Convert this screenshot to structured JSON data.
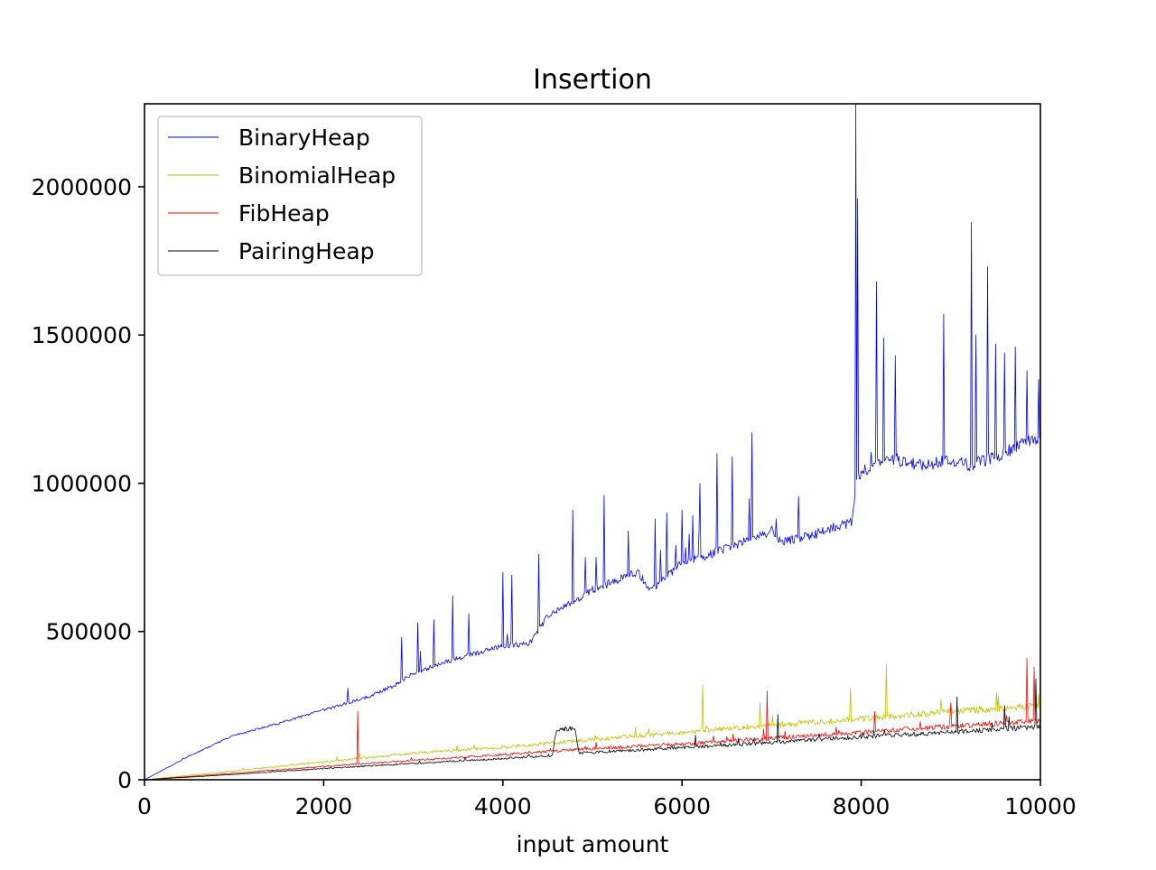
{
  "chart_data": {
    "type": "line",
    "title": "Insertion",
    "xlabel": "input amount",
    "ylabel": "",
    "xlim": [
      0,
      10000
    ],
    "ylim": [
      0,
      2280000
    ],
    "x_ticks": [
      0,
      2000,
      4000,
      6000,
      8000,
      10000
    ],
    "x_tick_labels": [
      "0",
      "2000",
      "4000",
      "6000",
      "8000",
      "10000"
    ],
    "y_ticks": [
      0,
      500000,
      1000000,
      1500000,
      2000000
    ],
    "y_tick_labels": [
      "0",
      "500000",
      "1000000",
      "1500000",
      "2000000"
    ],
    "grid": false,
    "legend_position": "upper-left",
    "series": [
      {
        "name": "BinaryHeap",
        "color": "#0000ff",
        "x": [
          0,
          500,
          1000,
          1500,
          2000,
          2500,
          2800,
          3000,
          3500,
          4000,
          4300,
          4500,
          5000,
          5500,
          5650,
          6000,
          6500,
          7000,
          7100,
          7500,
          7900,
          7950,
          8000,
          8200,
          8400,
          8700,
          9000,
          9200,
          9500,
          10000
        ],
        "y": [
          0,
          80000,
          150000,
          190000,
          235000,
          280000,
          320000,
          360000,
          410000,
          450000,
          460000,
          550000,
          640000,
          700000,
          640000,
          730000,
          780000,
          840000,
          800000,
          830000,
          870000,
          1000000,
          1040000,
          1070000,
          1080000,
          1060000,
          1080000,
          1060000,
          1090000,
          1160000
        ],
        "spikes": [
          [
            2870,
            480000
          ],
          [
            3050,
            530000
          ],
          [
            3230,
            540000
          ],
          [
            3440,
            620000
          ],
          [
            3620,
            560000
          ],
          [
            4000,
            700000
          ],
          [
            4100,
            690000
          ],
          [
            4400,
            760000
          ],
          [
            4780,
            910000
          ],
          [
            4920,
            750000
          ],
          [
            5130,
            960000
          ],
          [
            5400,
            840000
          ],
          [
            5700,
            880000
          ],
          [
            5830,
            900000
          ],
          [
            6000,
            910000
          ],
          [
            6200,
            1000000
          ],
          [
            6390,
            1100000
          ],
          [
            6560,
            1090000
          ],
          [
            6780,
            1170000
          ],
          [
            7050,
            880000
          ],
          [
            7940,
            2280000
          ],
          [
            7960,
            1960000
          ],
          [
            8170,
            1680000
          ],
          [
            8250,
            1490000
          ],
          [
            8380,
            1430000
          ],
          [
            8920,
            1570000
          ],
          [
            9230,
            1880000
          ],
          [
            9280,
            1500000
          ],
          [
            9410,
            1730000
          ],
          [
            9500,
            1470000
          ],
          [
            9600,
            1440000
          ],
          [
            9720,
            1460000
          ],
          [
            9850,
            1380000
          ],
          [
            9980,
            1350000
          ]
        ]
      },
      {
        "name": "BinomialHeap",
        "color": "#bfbf00",
        "x": [
          0,
          1000,
          2000,
          3000,
          4000,
          5000,
          6000,
          7000,
          8000,
          9000,
          10000
        ],
        "y": [
          0,
          30000,
          60000,
          90000,
          110000,
          135000,
          160000,
          185000,
          205000,
          230000,
          250000
        ],
        "spikes": [
          [
            2400,
            90000
          ],
          [
            6230,
            320000
          ],
          [
            6870,
            260000
          ],
          [
            7880,
            310000
          ],
          [
            8280,
            390000
          ],
          [
            9980,
            290000
          ]
        ]
      },
      {
        "name": "FibHeap",
        "color": "#ff0000",
        "x": [
          0,
          1000,
          2000,
          3000,
          4000,
          5000,
          6000,
          7000,
          8000,
          9000,
          10000
        ],
        "y": [
          0,
          22000,
          45000,
          65000,
          85000,
          105000,
          120000,
          140000,
          160000,
          180000,
          200000
        ],
        "spikes": [
          [
            2380,
            230000
          ],
          [
            6950,
            300000
          ],
          [
            8150,
            230000
          ],
          [
            9000,
            260000
          ],
          [
            9850,
            410000
          ],
          [
            9930,
            380000
          ]
        ]
      },
      {
        "name": "PairingHeap",
        "color": "#000000",
        "x": [
          0,
          1000,
          2000,
          3000,
          4000,
          4550,
          4600,
          4800,
          4850,
          5000,
          6000,
          7000,
          8000,
          9000,
          10000
        ],
        "y": [
          0,
          18000,
          38000,
          55000,
          72000,
          82000,
          170000,
          175000,
          90000,
          92000,
          108000,
          125000,
          145000,
          160000,
          180000
        ],
        "spikes": [
          [
            6150,
            150000
          ],
          [
            7070,
            220000
          ],
          [
            9070,
            280000
          ],
          [
            9600,
            250000
          ],
          [
            9950,
            340000
          ]
        ]
      }
    ]
  }
}
